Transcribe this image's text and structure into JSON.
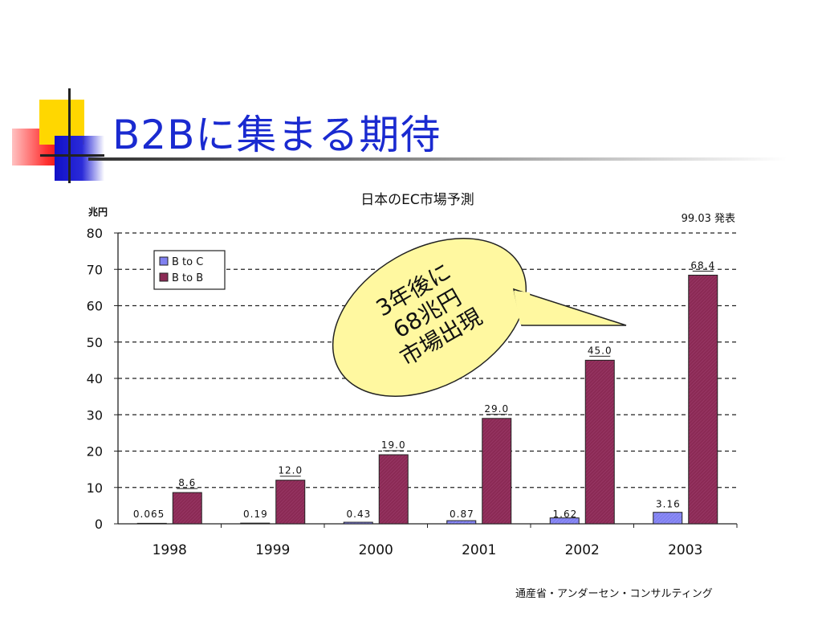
{
  "slide": {
    "title": "B2Bに集まる期待",
    "source": "通産省・アンダーセン・コンサルティング"
  },
  "chart_data": {
    "type": "bar",
    "title": "日本のEC市場予測",
    "ylabel": "兆円",
    "date_note": "99.03 発表",
    "categories": [
      "1998",
      "1999",
      "2000",
      "2001",
      "2002",
      "2003"
    ],
    "series": [
      {
        "name": "B to C",
        "values": [
          0.065,
          0.19,
          0.43,
          0.87,
          1.62,
          3.16
        ],
        "labels": [
          "0.065",
          "0.19",
          "0.43",
          "0.87",
          "1.62",
          "3.16"
        ],
        "color": "#8080f0"
      },
      {
        "name": "B to B",
        "values": [
          8.6,
          12.0,
          19.0,
          29.0,
          45.0,
          68.4
        ],
        "labels": [
          "8.6",
          "12.0",
          "19.0",
          "29.0",
          "45.0",
          "68.4"
        ],
        "color": "#8b2a55"
      }
    ],
    "ylim": [
      0,
      80
    ],
    "yticks": [
      0,
      10,
      20,
      30,
      40,
      50,
      60,
      70,
      80
    ],
    "grid": true,
    "legend": "top-left"
  },
  "callout": {
    "lines": [
      "3年後に",
      "68兆円",
      "市場出現"
    ],
    "fill": "#fff8a0"
  }
}
